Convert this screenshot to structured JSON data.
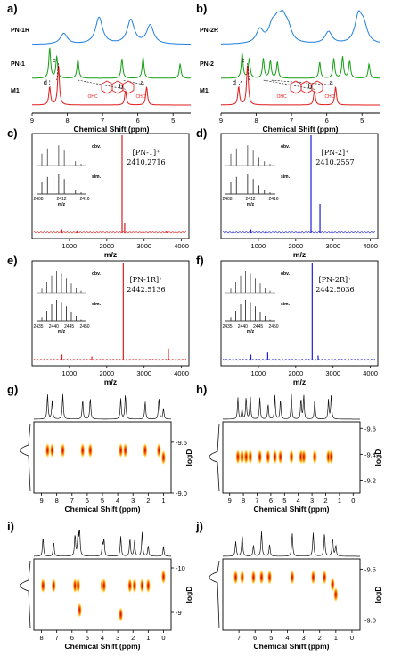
{
  "colors": {
    "blue": "#1f7fe0",
    "green": "#14a014",
    "red": "#e21b1b",
    "ms_red": "#d91e1e",
    "ms_blue": "#1f1fd6"
  },
  "chart_data": [
    {
      "id": "a",
      "type": "line",
      "label": "a)",
      "xlabel": "Chemical Shift (ppm)",
      "xlim": [
        9,
        4.5
      ],
      "xticks": [
        "9",
        "8",
        "7",
        "6",
        "5"
      ],
      "series": [
        {
          "name": "PN-1R",
          "color": "blue",
          "peaks": [
            [
              8.1,
              0.4
            ],
            [
              7.1,
              1.0
            ],
            [
              6.2,
              0.9
            ],
            [
              5.65,
              0.7
            ]
          ]
        },
        {
          "name": "PN-1",
          "color": "green",
          "peaks": [
            [
              8.5,
              0.85
            ],
            [
              8.3,
              0.6
            ],
            [
              7.7,
              0.55
            ],
            [
              6.45,
              0.55
            ],
            [
              5.85,
              0.6
            ],
            [
              4.8,
              0.4
            ]
          ]
        },
        {
          "name": "M1",
          "color": "red",
          "peaks": [
            [
              8.5,
              0.45
            ],
            [
              8.25,
              1.0
            ],
            [
              6.35,
              0.35
            ],
            [
              5.75,
              0.45
            ]
          ]
        }
      ],
      "peak_letters": [
        "d",
        "c",
        "b",
        "a"
      ],
      "molecule_labels": [
        "OHC",
        "CHO"
      ]
    },
    {
      "id": "b",
      "type": "line",
      "label": "b)",
      "xlabel": "Chemical Shift (ppm)",
      "xlim": [
        9,
        4.5
      ],
      "xticks": [
        "9",
        "8",
        "7",
        "6",
        "5"
      ],
      "series": [
        {
          "name": "PN-2R",
          "color": "blue",
          "peaks": [
            [
              7.9,
              0.5
            ],
            [
              7.55,
              0.55
            ],
            [
              7.4,
              0.6
            ],
            [
              7.25,
              0.75
            ],
            [
              7.1,
              0.5
            ],
            [
              5.95,
              0.45
            ],
            [
              5.1,
              1.0
            ],
            [
              4.95,
              0.6
            ]
          ]
        },
        {
          "name": "PN-2",
          "color": "green",
          "peaks": [
            [
              8.4,
              0.7
            ],
            [
              8.2,
              0.55
            ],
            [
              7.8,
              0.55
            ],
            [
              7.6,
              0.5
            ],
            [
              7.4,
              0.45
            ],
            [
              6.2,
              0.45
            ],
            [
              5.8,
              0.55
            ],
            [
              5.55,
              0.6
            ],
            [
              5.35,
              0.5
            ],
            [
              4.8,
              0.4
            ]
          ]
        },
        {
          "name": "M1",
          "color": "red",
          "peaks": [
            [
              8.5,
              0.45
            ],
            [
              8.25,
              1.0
            ],
            [
              6.35,
              0.35
            ],
            [
              5.75,
              0.45
            ]
          ]
        }
      ],
      "peak_letters": [
        "d",
        "c",
        "b",
        "a"
      ],
      "molecule_labels": [
        "OHC",
        "CHO"
      ]
    },
    {
      "id": "c",
      "type": "bar",
      "label": "c)",
      "xlabel": "m/z",
      "xlim": [
        0,
        4200
      ],
      "xticks": [
        "1000",
        "2000",
        "3000",
        "4000"
      ],
      "color": "ms_red",
      "annotation": [
        "[PN-1]⁺",
        "2410.2716"
      ],
      "peaks": [
        [
          800,
          0.04
        ],
        [
          1200,
          0.03
        ],
        [
          2410,
          1.0
        ],
        [
          2480,
          0.1
        ],
        [
          3600,
          0.02
        ]
      ],
      "inset": {
        "xticks": [
          "2408",
          "2412",
          "2416"
        ],
        "xlabel": "m/z",
        "obv": "obv.",
        "sim": "sim.",
        "heights": [
          0.55,
          0.8,
          1.0,
          0.95,
          0.7,
          0.4,
          0.2,
          0.08
        ]
      }
    },
    {
      "id": "d",
      "type": "bar",
      "label": "d)",
      "xlabel": "m/z",
      "xlim": [
        0,
        4200
      ],
      "xticks": [
        "1000",
        "2000",
        "3000",
        "4000"
      ],
      "color": "ms_blue",
      "annotation": [
        "[PN-2]⁺",
        "2410.2557"
      ],
      "peaks": [
        [
          800,
          0.04
        ],
        [
          1200,
          0.03
        ],
        [
          2410,
          1.0
        ],
        [
          2650,
          0.3
        ]
      ],
      "inset": {
        "xticks": [
          "2408",
          "2412",
          "2416"
        ],
        "xlabel": "m/z",
        "obv": "obv.",
        "sim": "sim.",
        "heights": [
          0.55,
          0.8,
          1.0,
          0.95,
          0.7,
          0.4,
          0.2,
          0.08
        ]
      }
    },
    {
      "id": "e",
      "type": "bar",
      "label": "e)",
      "xlabel": "m/z",
      "xlim": [
        0,
        4200
      ],
      "xticks": [
        "1000",
        "2000",
        "3000",
        "4000"
      ],
      "color": "ms_red",
      "annotation": [
        "[PN-1R]⁺",
        "2442.5136"
      ],
      "peaks": [
        [
          800,
          0.06
        ],
        [
          1600,
          0.04
        ],
        [
          2442,
          1.0
        ],
        [
          3650,
          0.12
        ]
      ],
      "inset": {
        "xticks": [
          "2435",
          "2440",
          "2445",
          "2450"
        ],
        "xlabel": "m/z",
        "obv": "obv.",
        "sim": "sim.",
        "heights": [
          0.2,
          0.5,
          0.8,
          1.0,
          0.9,
          0.7,
          0.45,
          0.25,
          0.1
        ]
      }
    },
    {
      "id": "f",
      "type": "bar",
      "label": "f)",
      "xlabel": "m/z",
      "xlim": [
        0,
        4200
      ],
      "xticks": [
        "1000",
        "2000",
        "3000",
        "4000"
      ],
      "color": "ms_blue",
      "annotation": [
        "[PN-2R]⁺",
        "2442.5036"
      ],
      "peaks": [
        [
          800,
          0.06
        ],
        [
          1250,
          0.08
        ],
        [
          2442,
          1.0
        ],
        [
          2600,
          0.05
        ]
      ],
      "inset": {
        "xticks": [
          "2435",
          "2440",
          "2445",
          "2450"
        ],
        "xlabel": "m/z",
        "obv": "obv.",
        "sim": "sim.",
        "heights": [
          0.2,
          0.5,
          0.8,
          1.0,
          0.9,
          0.7,
          0.45,
          0.25,
          0.1
        ]
      }
    },
    {
      "id": "g",
      "type": "heatmap",
      "label": "g)",
      "xlabel": "Chemical Shift (ppm)",
      "ylabel": "logD",
      "xlim": [
        9.5,
        0.5
      ],
      "ylim": [
        -9.0,
        -9.7
      ],
      "xticks": [
        "9",
        "8",
        "7",
        "6",
        "5",
        "4",
        "3",
        "2",
        "1"
      ],
      "yticks": [
        "-9.5",
        "-9.0"
      ],
      "spots": [
        [
          8.6,
          -9.42
        ],
        [
          8.3,
          -9.42
        ],
        [
          7.6,
          -9.42
        ],
        [
          6.3,
          -9.42
        ],
        [
          5.8,
          -9.42
        ],
        [
          3.8,
          -9.42
        ],
        [
          3.5,
          -9.42
        ],
        [
          2.2,
          -9.42
        ],
        [
          1.3,
          -9.42
        ],
        [
          1.0,
          -9.35
        ]
      ]
    },
    {
      "id": "h",
      "type": "heatmap",
      "label": "h)",
      "xlabel": "Chemical Shift (ppm)",
      "ylabel": "logD",
      "xlim": [
        9.5,
        -0.5
      ],
      "ylim": [
        -9.1,
        -9.65
      ],
      "xticks": [
        "9",
        "8",
        "7",
        "6",
        "5",
        "4",
        "3",
        "2",
        "1",
        "0"
      ],
      "yticks": [
        "-9.6",
        "-9.4",
        "-9.2"
      ],
      "spots": [
        [
          8.4,
          -9.38
        ],
        [
          8.1,
          -9.38
        ],
        [
          7.8,
          -9.38
        ],
        [
          7.5,
          -9.38
        ],
        [
          6.8,
          -9.38
        ],
        [
          6.2,
          -9.38
        ],
        [
          5.7,
          -9.38
        ],
        [
          5.3,
          -9.38
        ],
        [
          4.5,
          -9.38
        ],
        [
          3.8,
          -9.38
        ],
        [
          3.6,
          -9.38
        ],
        [
          2.8,
          -9.38
        ],
        [
          1.8,
          -9.38
        ],
        [
          1.6,
          -9.38
        ]
      ]
    },
    {
      "id": "i",
      "type": "heatmap",
      "label": "i)",
      "xlabel": "Chemical Shift (ppm)",
      "ylabel": "logD",
      "xlim": [
        8.5,
        -0.5
      ],
      "ylim": [
        -8.6,
        -10.2
      ],
      "xticks": [
        "8",
        "7",
        "6",
        "5",
        "4",
        "3",
        "2",
        "1",
        "0"
      ],
      "yticks": [
        "-10",
        "-9"
      ],
      "spots": [
        [
          7.9,
          -9.6
        ],
        [
          7.2,
          -9.6
        ],
        [
          5.8,
          -9.6
        ],
        [
          5.6,
          -9.6
        ],
        [
          4.0,
          -9.6
        ],
        [
          3.9,
          -9.6
        ],
        [
          2.2,
          -9.6
        ],
        [
          1.9,
          -9.6
        ],
        [
          1.4,
          -9.6
        ],
        [
          1.0,
          -9.6
        ],
        [
          2.8,
          -8.95
        ],
        [
          5.5,
          -9.05
        ],
        [
          0.0,
          -9.8
        ]
      ]
    },
    {
      "id": "j",
      "type": "heatmap",
      "label": "j)",
      "xlabel": "Chemical Shift (ppm)",
      "ylabel": "logD",
      "xlim": [
        8,
        -0.5
      ],
      "ylim": [
        -8.9,
        -9.6
      ],
      "xticks": [
        "7",
        "6",
        "5",
        "4",
        "3",
        "2",
        "1",
        "0"
      ],
      "yticks": [
        "-9.5",
        "-9.0"
      ],
      "spots": [
        [
          7.2,
          -9.42
        ],
        [
          6.8,
          -9.42
        ],
        [
          6.1,
          -9.42
        ],
        [
          5.6,
          -9.42
        ],
        [
          5.1,
          -9.42
        ],
        [
          3.7,
          -9.42
        ],
        [
          2.4,
          -9.42
        ],
        [
          1.7,
          -9.42
        ],
        [
          1.2,
          -9.35
        ],
        [
          1.0,
          -9.25
        ]
      ]
    }
  ]
}
